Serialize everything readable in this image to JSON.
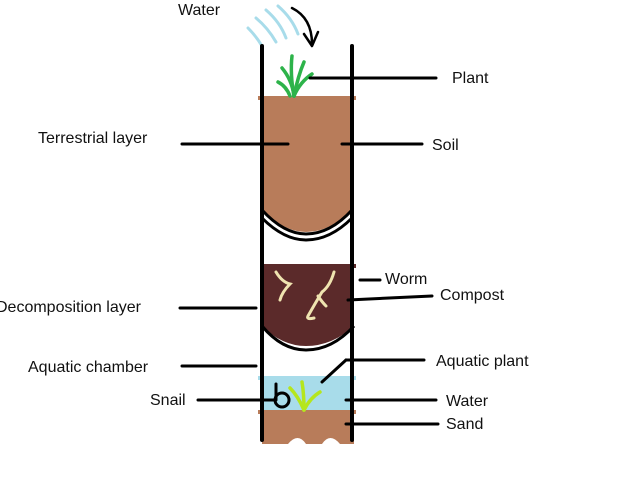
{
  "labels": {
    "water_top": "Water",
    "plant": "Plant",
    "terrestrial_layer": "Terrestrial layer",
    "soil": "Soil",
    "worm": "Worm",
    "compost": "Compost",
    "decomposition_layer": "Decomposition layer",
    "aquatic_chamber": "Aquatic chamber",
    "aquatic_plant": "Aquatic plant",
    "snail": "Snail",
    "water_bottom": "Water",
    "sand": "Sand"
  },
  "colors": {
    "soil": "#b87c5a",
    "compost": "#5b2a2a",
    "water": "#a8dcea",
    "sand": "#b87c5a",
    "plant": "#2db34a",
    "aquatic_plant": "#b5e61d",
    "worm": "#efe4b0",
    "rain": "#a8dcea",
    "outline": "#000000"
  }
}
